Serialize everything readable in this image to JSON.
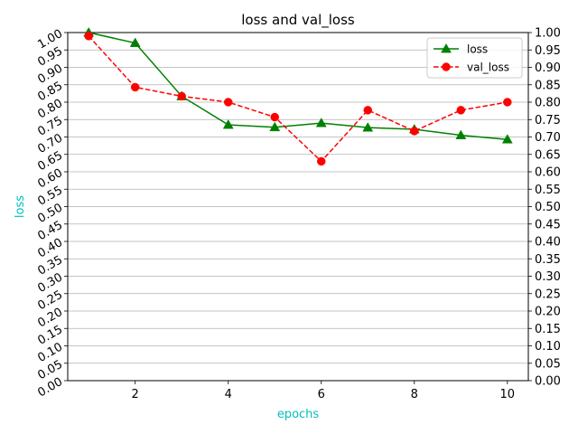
{
  "chart_data": {
    "type": "line",
    "title": "loss and val_loss",
    "xlabel": "epochs",
    "ylabel": "loss",
    "label_color": "#00bfbf",
    "x": [
      1,
      2,
      3,
      4,
      5,
      6,
      7,
      8,
      9,
      10
    ],
    "xlim": [
      0.55,
      10.45
    ],
    "xticks": [
      2,
      4,
      6,
      8,
      10
    ],
    "ylim": [
      0.0,
      1.0
    ],
    "yticks": [
      "0.00",
      "0.05",
      "0.10",
      "0.15",
      "0.20",
      "0.25",
      "0.30",
      "0.35",
      "0.40",
      "0.45",
      "0.50",
      "0.55",
      "0.60",
      "0.65",
      "0.70",
      "0.75",
      "0.80",
      "0.85",
      "0.90",
      "0.95",
      "1.00"
    ],
    "grid": "horizontal",
    "legend_position": "top-right",
    "series": [
      {
        "name": "loss",
        "color": "#008000",
        "marker": "triangle",
        "linestyle": "solid",
        "values": [
          1.0,
          0.97,
          0.817,
          0.735,
          0.728,
          0.74,
          0.727,
          0.722,
          0.705,
          0.693
        ]
      },
      {
        "name": "val_loss",
        "color": "#ff0000",
        "marker": "circle",
        "linestyle": "dashed",
        "values": [
          0.99,
          0.843,
          0.817,
          0.8,
          0.757,
          0.63,
          0.777,
          0.717,
          0.777,
          0.8
        ]
      }
    ]
  }
}
